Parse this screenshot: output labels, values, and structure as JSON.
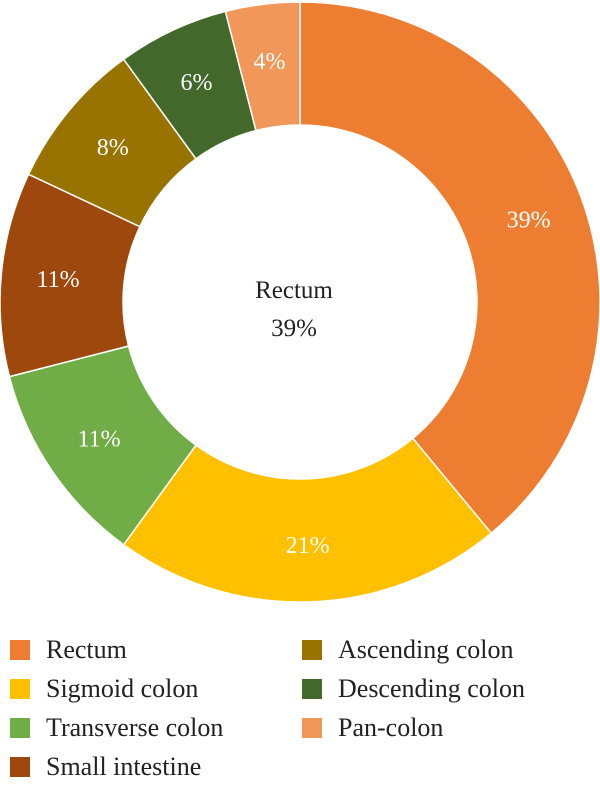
{
  "chart_data": {
    "type": "pie",
    "variant": "donut",
    "title": "",
    "center_label": {
      "name": "Rectum",
      "value": "39%"
    },
    "categories": [
      "Rectum",
      "Sigmoid colon",
      "Transverse colon",
      "Small intestine",
      "Ascending colon",
      "Descending colon",
      "Pan-colon"
    ],
    "values": [
      39,
      21,
      11,
      11,
      8,
      6,
      4
    ],
    "labels": [
      "39%",
      "21%",
      "11%",
      "11%",
      "8%",
      "6%",
      "4%"
    ],
    "colors": [
      "#ED7D31",
      "#FFC000",
      "#70AD47",
      "#9E480E",
      "#997300",
      "#43682B",
      "#F1975A"
    ],
    "legend_position": "bottom",
    "legend": [
      {
        "label": "Rectum",
        "color": "#ED7D31"
      },
      {
        "label": "Sigmoid colon",
        "color": "#FFC000"
      },
      {
        "label": "Transverse colon",
        "color": "#70AD47"
      },
      {
        "label": "Small intestine",
        "color": "#9E480E"
      },
      {
        "label": "Ascending colon",
        "color": "#997300"
      },
      {
        "label": "Descending colon",
        "color": "#43682B"
      },
      {
        "label": "Pan-colon",
        "color": "#F1975A"
      }
    ]
  }
}
